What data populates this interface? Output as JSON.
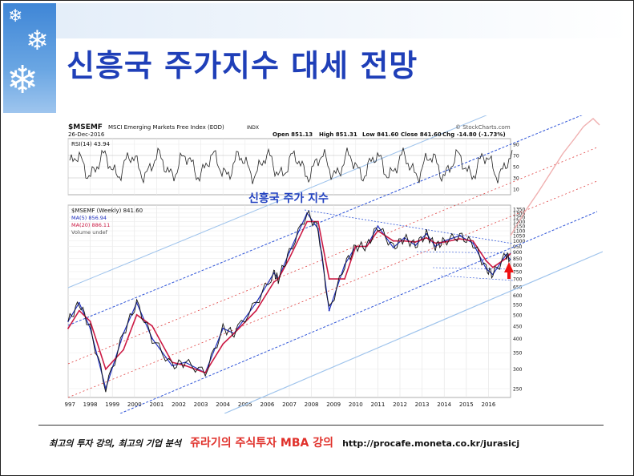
{
  "slide": {
    "title": "신흥국 주가지수 대세 전망",
    "footer": {
      "lecture_text": "최고의 투자 강의, 최고의 기업 분석",
      "brand_text": "쥬라기의 주식투자 MBA 강의",
      "url": "http://procafe.moneta.co.kr/jurasicj"
    }
  },
  "chart": {
    "symbol": "$MSEMF",
    "index_name": "MSCI Emerging Markets Free Index (EOD)",
    "exchange": "INDX",
    "date": "26-Dec-2016",
    "source": "© StockCharts.com",
    "open": "Open 851.13",
    "high": "High 851.31",
    "low": "Low 841.60",
    "close": "Close 841.60",
    "chg": "Chg -14.80 (-1.73%)",
    "rsi_label": "RSI(14) 43.94",
    "rsi_ticks": [
      "90",
      "70",
      "50",
      "30",
      "10"
    ],
    "weekly_label": "$MSEMF (Weekly) 841.60",
    "ma5_label": "MA(5) 856.94",
    "ma20_label": "MA(20) 886.11",
    "volume_label": "Volume undef",
    "annotation": "신흥국 주가 지수",
    "price_ticks": [
      "1350",
      "1300",
      "1250",
      "1200",
      "1150",
      "1100",
      "1050",
      "1000",
      "950",
      "900",
      "850",
      "800",
      "750",
      "700",
      "650",
      "600",
      "550",
      "500",
      "450",
      "400",
      "350",
      "300",
      "250"
    ],
    "year_labels": [
      "1997",
      "1998",
      "1999",
      "2000",
      "2001",
      "2002",
      "2003",
      "2004",
      "2005",
      "2006",
      "2007",
      "2008",
      "2009",
      "2010",
      "2011",
      "2012",
      "2013",
      "2014",
      "2015",
      "2016"
    ]
  },
  "chart_data": {
    "type": "line",
    "title": "$MSEMF (Weekly) 841.60",
    "xlabel": "",
    "ylabel": "",
    "log_scale": true,
    "ylim": [
      230,
      1400
    ],
    "x": [
      1997.0,
      1997.5,
      1998.0,
      1998.7,
      1999.5,
      2000.1,
      2000.8,
      2001.7,
      2002.3,
      2003.2,
      2004.0,
      2004.5,
      2005.5,
      2006.3,
      2006.5,
      2007.0,
      2007.8,
      2008.3,
      2008.8,
      2009.5,
      2010.0,
      2010.5,
      2011.0,
      2011.7,
      2012.2,
      2012.7,
      2013.2,
      2013.6,
      2014.0,
      2014.7,
      2015.3,
      2015.9,
      2016.2,
      2016.8,
      2016.98
    ],
    "series": [
      {
        "name": "MA(5) 856.94",
        "values": [
          470,
          560,
          440,
          250,
          420,
          560,
          400,
          310,
          320,
          290,
          440,
          420,
          560,
          740,
          700,
          900,
          1300,
          1120,
          520,
          800,
          950,
          950,
          1150,
          940,
          1030,
          960,
          1070,
          950,
          1000,
          1050,
          980,
          770,
          730,
          880,
          842
        ]
      },
      {
        "name": "MA(20) 886.11",
        "values": [
          440,
          520,
          470,
          300,
          360,
          500,
          450,
          320,
          310,
          290,
          380,
          420,
          520,
          680,
          700,
          850,
          1200,
          1200,
          700,
          700,
          950,
          950,
          1100,
          1000,
          1000,
          990,
          1030,
          980,
          990,
          1020,
          1000,
          830,
          780,
          850,
          886
        ]
      }
    ]
  },
  "colors": {
    "title": "#1f3fb8",
    "price_line": "#111111",
    "ma5": "#2030c0",
    "ma20": "#cc1a44",
    "channel_blue": "#2f55d8",
    "channel_red": "#e04040",
    "channel_light": "#9ec3ec",
    "arrow": "#ee1111",
    "footer_brand": "#e0302a"
  },
  "icons": [
    "snowflake-icon",
    "snowflake-icon",
    "snowflake-icon",
    "red-up-arrow-icon"
  ]
}
